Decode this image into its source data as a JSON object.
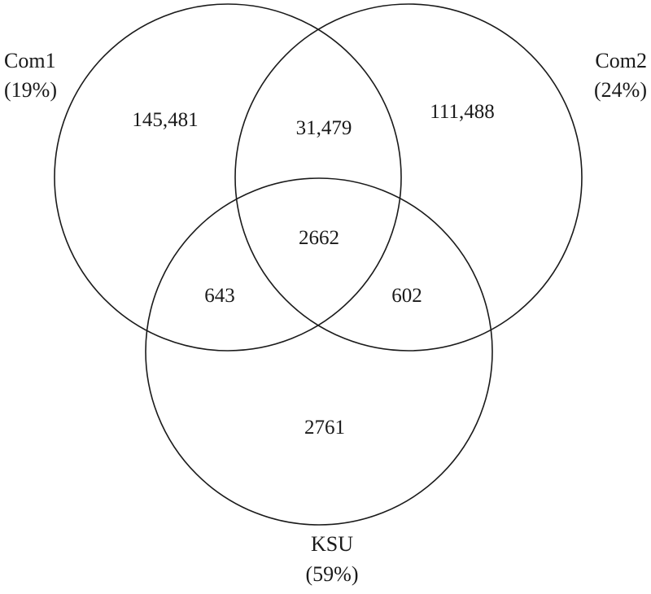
{
  "diagram": {
    "type": "venn-3",
    "sets": [
      {
        "id": "com1",
        "name": "Com1",
        "share": "(19%)"
      },
      {
        "id": "com2",
        "name": "Com2",
        "share": "(24%)"
      },
      {
        "id": "ksu",
        "name": "KSU",
        "share": "(59%)"
      }
    ],
    "regions": {
      "com1_only": "145,481",
      "com2_only": "111,488",
      "ksu_only": "2761",
      "com1_com2": "31,479",
      "com1_ksu": "643",
      "com2_ksu": "602",
      "all_three": "2662"
    },
    "line_color": "#1a1a1a",
    "background": "#ffffff"
  }
}
